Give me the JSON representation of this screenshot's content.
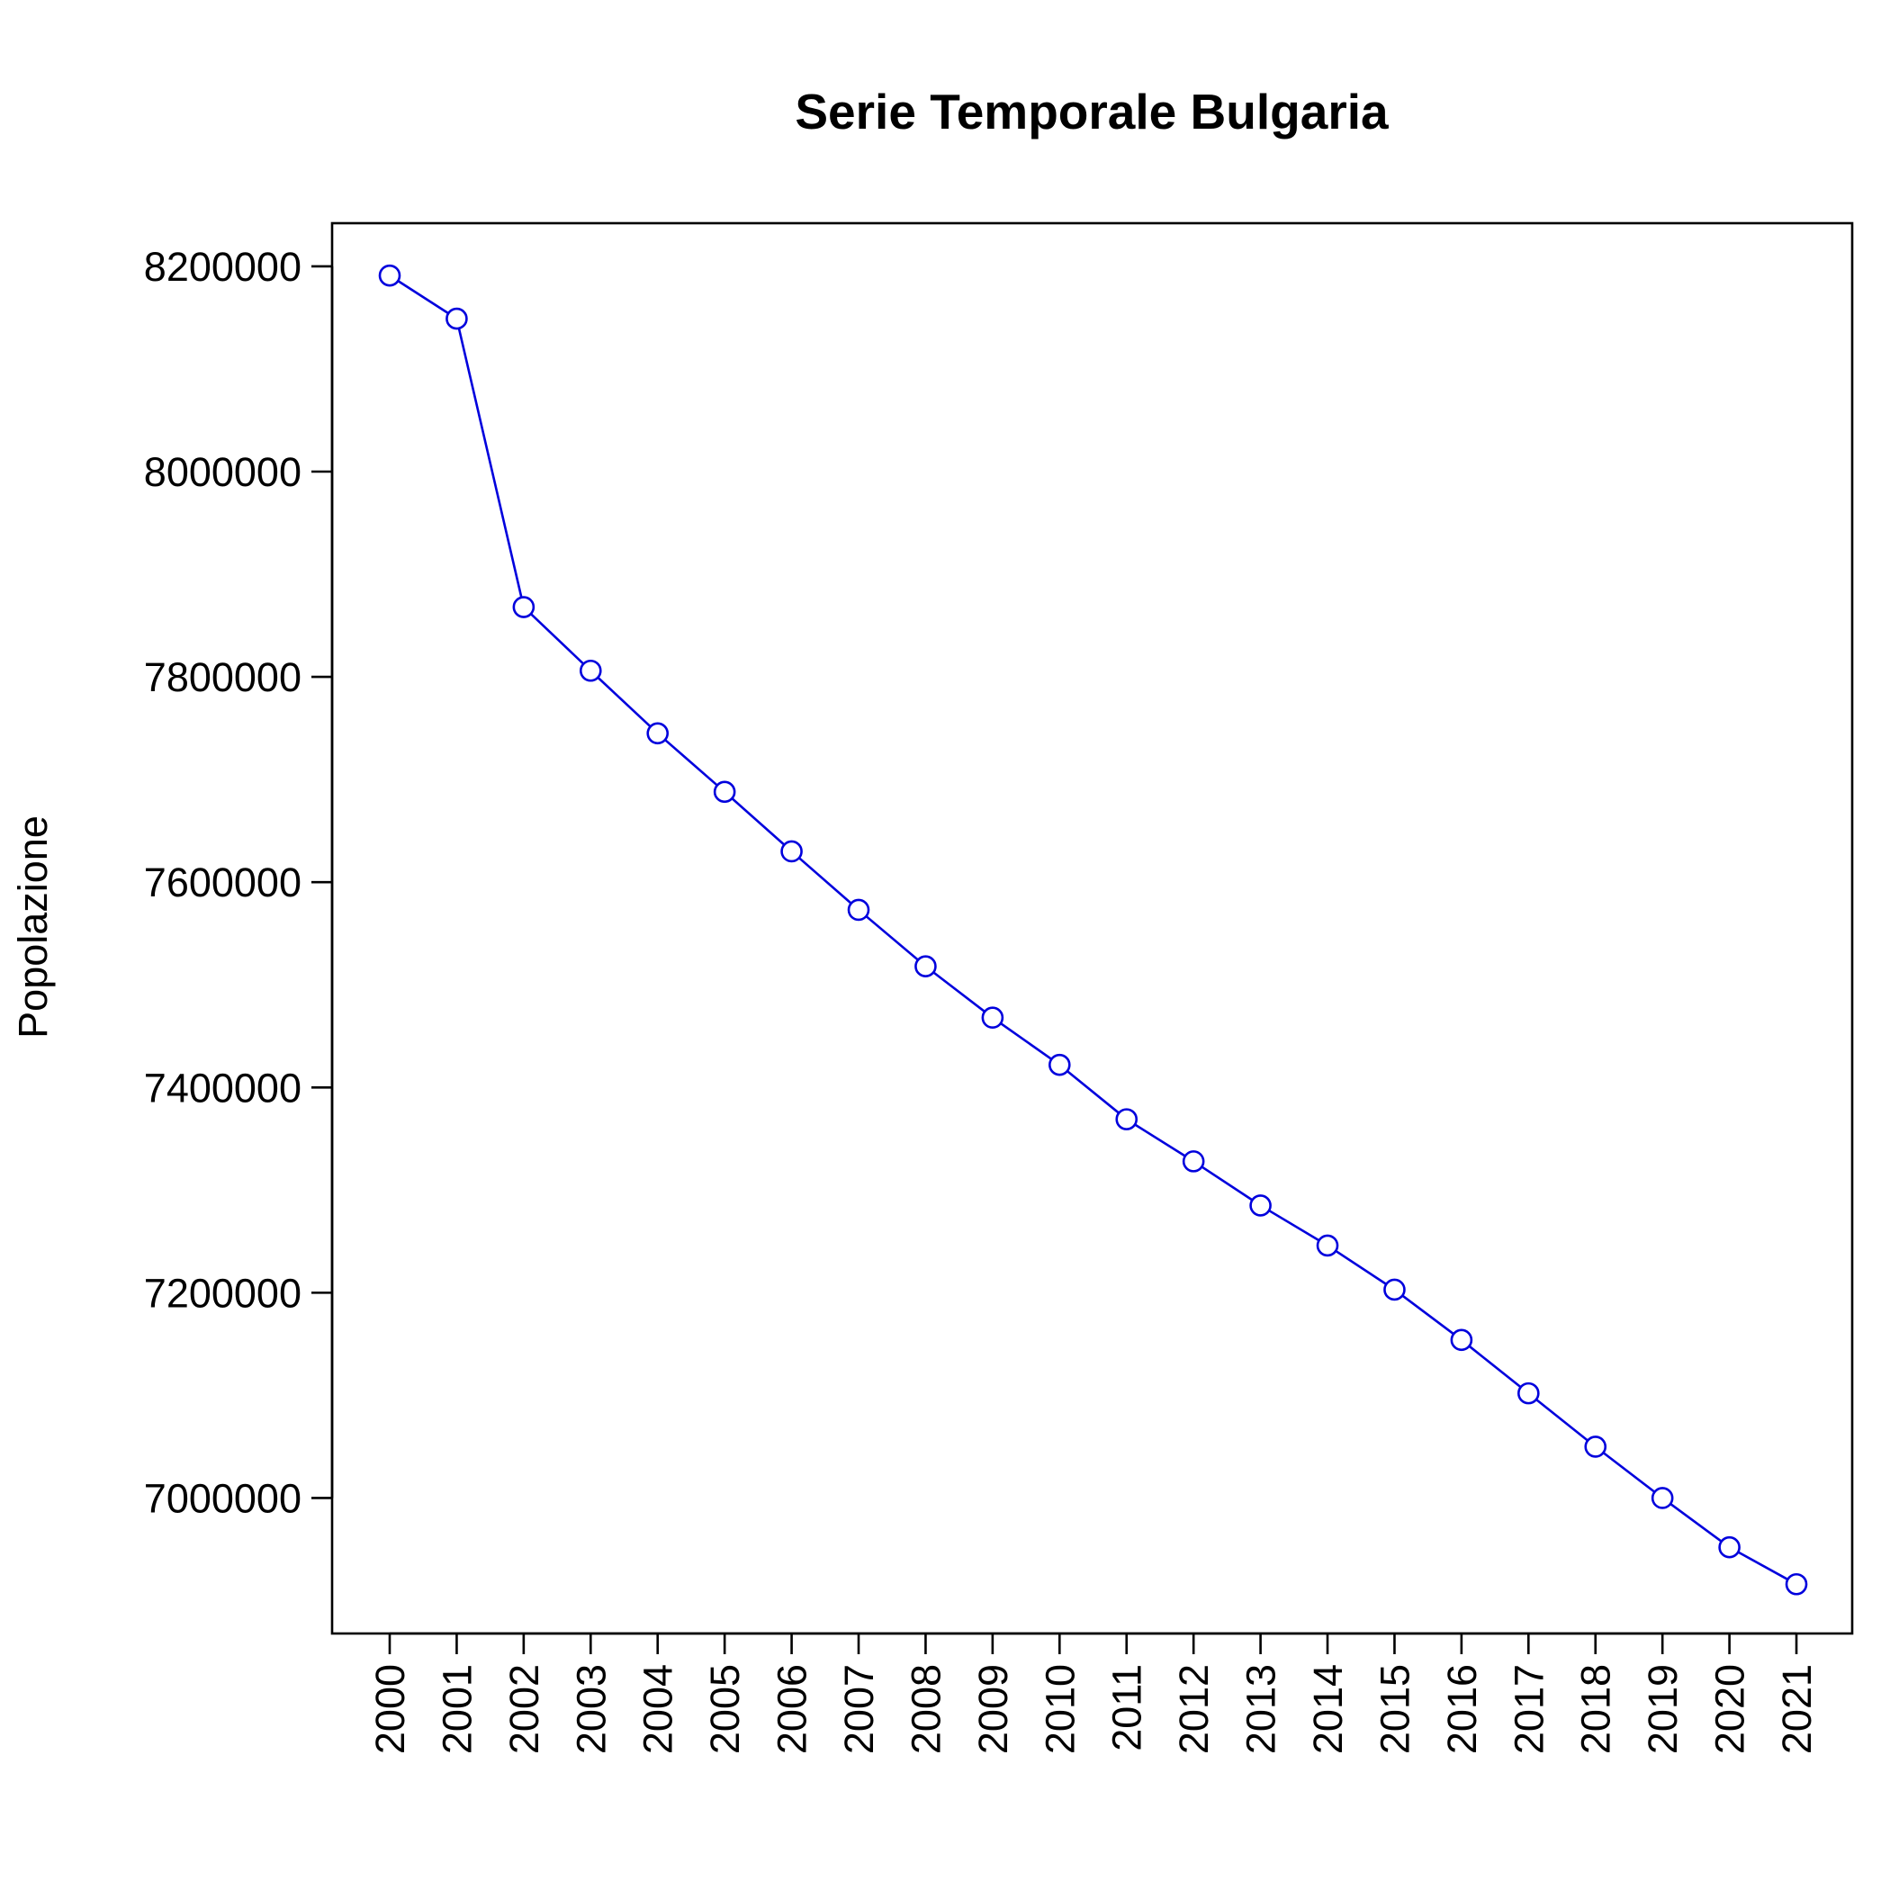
{
  "chart_data": {
    "type": "line",
    "title": "Serie Temporale Bulgaria",
    "xlabel": "",
    "ylabel": "Popolazione",
    "x": [
      "2000",
      "2001",
      "2002",
      "2003",
      "2004",
      "2005",
      "2006",
      "2007",
      "2008",
      "2009",
      "2010",
      "2011",
      "2012",
      "2013",
      "2014",
      "2015",
      "2016",
      "2017",
      "2018",
      "2019",
      "2020",
      "2021"
    ],
    "series": [
      {
        "values": [
          8191000,
          8149000,
          7868000,
          7806000,
          7745000,
          7688000,
          7630000,
          7573000,
          7518000,
          7468000,
          7422000,
          7369000,
          7328000,
          7285000,
          7246000,
          7203000,
          7154000,
          7102000,
          7050000,
          7000000,
          6952000,
          6916000
        ],
        "color": "#0000DD",
        "marker": "open-circle"
      }
    ],
    "yticks": [
      7000000,
      7200000,
      7400000,
      7600000,
      7800000,
      8000000,
      8200000
    ],
    "ytick_labels": [
      "7000000",
      "7200000",
      "7400000",
      "7600000",
      "7800000",
      "8000000",
      "8200000"
    ],
    "ylim": [
      6868000,
      8242000
    ],
    "grid": false,
    "legend": "none"
  }
}
